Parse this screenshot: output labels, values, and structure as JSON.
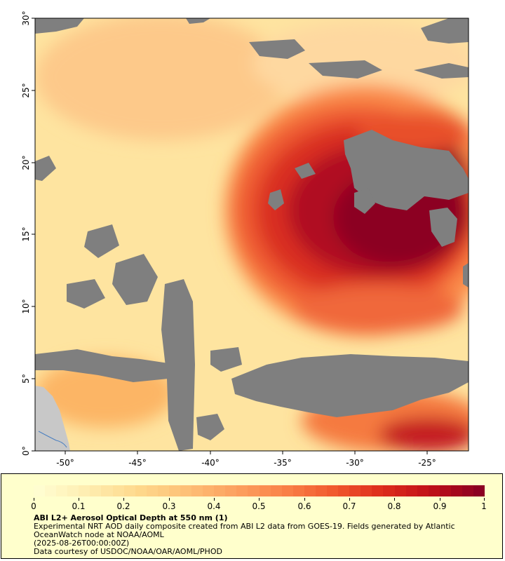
{
  "map": {
    "lon_ticks": [
      "-50°",
      "-45°",
      "-40°",
      "-35°",
      "-30°",
      "-25°"
    ],
    "lat_ticks": [
      "0°",
      "5°",
      "10°",
      "15°",
      "20°",
      "25°",
      "30°"
    ],
    "lon_range": [
      -52,
      -22.5
    ],
    "lat_range": [
      0,
      30
    ],
    "colors": {
      "no_data": "#7f7f7f",
      "land": "#c8c8c8",
      "river": "#4a7fc0"
    }
  },
  "legend": {
    "colorbar_ticks": [
      "0",
      "0.1",
      "0.2",
      "0.3",
      "0.4",
      "0.5",
      "0.6",
      "0.7",
      "0.8",
      "0.9",
      "1"
    ],
    "colorbar_range": [
      0,
      1
    ],
    "colors": [
      "#fffdd0",
      "#feedb0",
      "#fed98c",
      "#fdc077",
      "#fca260",
      "#fa8248",
      "#f15a2e",
      "#de2d1c",
      "#c01018",
      "#8c0022"
    ],
    "title": "ABI L2+ Aerosol Optical Depth at 550 nm (1)",
    "description": "Experimental NRT AOD daily composite created from ABI L2 data from GOES-19. Fields generated by Atlantic OceanWatch node at NOAA/AOML",
    "date": "(2025-08-26T00:00:00Z)",
    "credit": "Data courtesy of USDOC/NOAA/OAR/AOML/PHOD"
  }
}
